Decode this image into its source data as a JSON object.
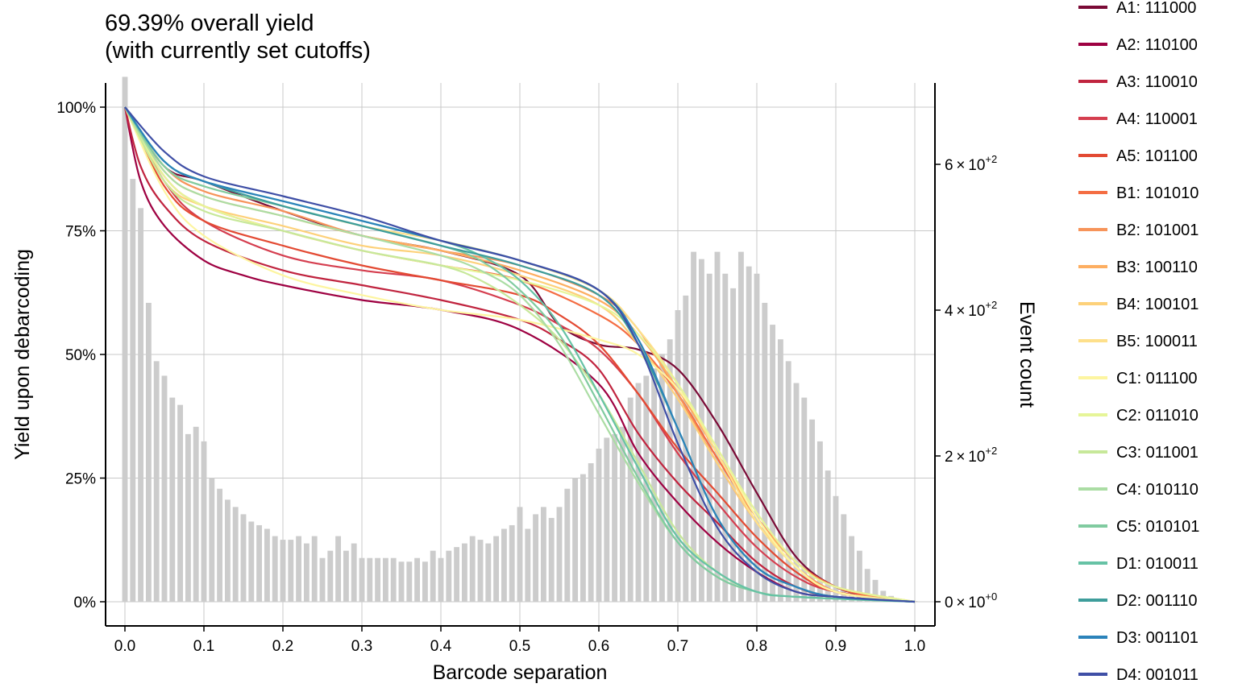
{
  "chart_data": {
    "type": "line",
    "title": "69.39% overall yield\n(with currently set cutoffs)",
    "xlabel": "Barcode separation",
    "ylabel": "Yield upon debarcoding",
    "y2label": "Event count",
    "xlim": [
      0,
      1
    ],
    "ylim": [
      0,
      100
    ],
    "y2lim": [
      0,
      750
    ],
    "grid": true,
    "legend": "right",
    "x_ticks": [
      "0.0",
      "0.1",
      "0.2",
      "0.3",
      "0.4",
      "0.5",
      "0.6",
      "0.7",
      "0.8",
      "0.9",
      "1.0"
    ],
    "y_ticks": [
      {
        "value": 0,
        "label": "0%"
      },
      {
        "value": 25,
        "label": "25%"
      },
      {
        "value": 50,
        "label": "50%"
      },
      {
        "value": 75,
        "label": "75%"
      },
      {
        "value": 100,
        "label": "100%"
      }
    ],
    "y2_ticks": [
      {
        "value": 0,
        "base": "0 × 10",
        "exp": "+0"
      },
      {
        "value": 200,
        "base": "2 × 10",
        "exp": "+2"
      },
      {
        "value": 400,
        "base": "4 × 10",
        "exp": "+2"
      },
      {
        "value": 600,
        "base": "6 × 10",
        "exp": "+2"
      }
    ],
    "histogram": {
      "color": "#cccccc",
      "bin_width": 0.01,
      "counts": [
        720,
        580,
        540,
        410,
        330,
        310,
        280,
        270,
        230,
        240,
        220,
        170,
        155,
        140,
        130,
        120,
        110,
        105,
        100,
        90,
        85,
        85,
        90,
        80,
        90,
        60,
        70,
        90,
        70,
        80,
        60,
        60,
        60,
        60,
        60,
        55,
        55,
        60,
        55,
        70,
        60,
        70,
        75,
        80,
        90,
        85,
        80,
        90,
        100,
        105,
        130,
        100,
        120,
        130,
        115,
        130,
        155,
        170,
        175,
        190,
        210,
        225,
        230,
        240,
        280,
        300,
        310,
        320,
        340,
        360,
        400,
        420,
        480,
        470,
        450,
        480,
        450,
        430,
        480,
        460,
        450,
        410,
        380,
        360,
        330,
        300,
        280,
        250,
        220,
        180,
        145,
        120,
        90,
        70,
        45,
        30,
        15,
        8,
        4,
        2,
        1
      ]
    },
    "series": [
      {
        "name": "A1: 111000",
        "color": "#7a0a36",
        "x": [
          0,
          0.05,
          0.1,
          0.2,
          0.3,
          0.4,
          0.5,
          0.55,
          0.6,
          0.65,
          0.7,
          0.75,
          0.8,
          0.85,
          0.9,
          0.95,
          1.0
        ],
        "y": [
          100,
          88,
          85,
          79,
          74,
          71,
          66,
          56,
          52,
          51,
          47,
          36,
          22,
          9,
          3,
          1,
          0
        ]
      },
      {
        "name": "A2: 110100",
        "color": "#9e0142",
        "x": [
          0,
          0.02,
          0.05,
          0.1,
          0.15,
          0.2,
          0.3,
          0.4,
          0.5,
          0.6,
          0.65,
          0.7,
          0.75,
          0.8,
          0.85,
          0.9,
          1.0
        ],
        "y": [
          100,
          85,
          76,
          69,
          66,
          64,
          61,
          59,
          55,
          44,
          30,
          20,
          12,
          6,
          2,
          1,
          0
        ]
      },
      {
        "name": "A3: 110010",
        "color": "#c0243f",
        "x": [
          0,
          0.02,
          0.05,
          0.1,
          0.2,
          0.3,
          0.4,
          0.5,
          0.55,
          0.6,
          0.65,
          0.7,
          0.75,
          0.8,
          0.85,
          0.9,
          1.0
        ],
        "y": [
          100,
          88,
          80,
          73,
          67,
          64,
          61,
          57,
          53,
          47,
          34,
          24,
          16,
          8,
          3,
          1,
          0
        ]
      },
      {
        "name": "A4: 110001",
        "color": "#d53e4f",
        "x": [
          0,
          0.05,
          0.1,
          0.2,
          0.3,
          0.4,
          0.5,
          0.55,
          0.6,
          0.65,
          0.7,
          0.75,
          0.8,
          0.85,
          0.9,
          1.0
        ],
        "y": [
          100,
          85,
          77,
          70,
          67,
          65,
          60,
          56,
          51,
          42,
          30,
          20,
          11,
          5,
          2,
          0
        ]
      },
      {
        "name": "A5: 101100",
        "color": "#e34a33",
        "x": [
          0,
          0.05,
          0.1,
          0.2,
          0.3,
          0.4,
          0.5,
          0.55,
          0.6,
          0.65,
          0.7,
          0.75,
          0.8,
          0.85,
          0.9,
          1.0
        ],
        "y": [
          100,
          84,
          77,
          72,
          68,
          65,
          62,
          58,
          52,
          42,
          31,
          22,
          13,
          6,
          2,
          0
        ]
      },
      {
        "name": "B1: 101010",
        "color": "#f46d43",
        "x": [
          0,
          0.05,
          0.1,
          0.2,
          0.3,
          0.4,
          0.5,
          0.6,
          0.65,
          0.7,
          0.75,
          0.8,
          0.85,
          0.9,
          0.95,
          1.0
        ],
        "y": [
          100,
          86,
          80,
          75,
          71,
          68,
          65,
          58,
          52,
          42,
          29,
          17,
          8,
          3,
          1,
          0
        ]
      },
      {
        "name": "B2: 101001",
        "color": "#f7945a",
        "x": [
          0,
          0.05,
          0.1,
          0.2,
          0.3,
          0.4,
          0.5,
          0.6,
          0.65,
          0.7,
          0.75,
          0.8,
          0.85,
          0.9,
          0.95,
          1.0
        ],
        "y": [
          100,
          88,
          83,
          79,
          74,
          71,
          68,
          62,
          55,
          42,
          28,
          16,
          7,
          2,
          1,
          0
        ]
      },
      {
        "name": "B3: 100110",
        "color": "#fdae61",
        "x": [
          0,
          0.05,
          0.1,
          0.2,
          0.3,
          0.4,
          0.5,
          0.6,
          0.65,
          0.7,
          0.75,
          0.8,
          0.85,
          0.9,
          1.0
        ],
        "y": [
          100,
          87,
          82,
          78,
          74,
          71,
          67,
          61,
          54,
          43,
          30,
          17,
          8,
          3,
          0
        ]
      },
      {
        "name": "B4: 100101",
        "color": "#fdd17a",
        "x": [
          0,
          0.05,
          0.1,
          0.2,
          0.3,
          0.4,
          0.5,
          0.6,
          0.65,
          0.7,
          0.75,
          0.8,
          0.85,
          0.9,
          1.0
        ],
        "y": [
          100,
          85,
          80,
          76,
          72,
          70,
          66,
          60,
          52,
          41,
          28,
          16,
          7,
          2,
          0
        ]
      },
      {
        "name": "B5: 100011",
        "color": "#fee08b",
        "x": [
          0,
          0.05,
          0.1,
          0.2,
          0.3,
          0.4,
          0.5,
          0.6,
          0.65,
          0.7,
          0.75,
          0.8,
          0.85,
          0.9,
          1.0
        ],
        "y": [
          100,
          88,
          84,
          80,
          76,
          73,
          69,
          63,
          55,
          44,
          30,
          16,
          7,
          2,
          0
        ]
      },
      {
        "name": "C1: 011100",
        "color": "#fdf5a0",
        "x": [
          0,
          0.05,
          0.1,
          0.2,
          0.3,
          0.4,
          0.5,
          0.6,
          0.65,
          0.7,
          0.75,
          0.8,
          0.85,
          0.9,
          1.0
        ],
        "y": [
          100,
          83,
          74,
          66,
          62,
          59,
          57,
          53,
          50,
          43,
          31,
          17,
          7,
          2,
          0
        ]
      },
      {
        "name": "C2: 011010",
        "color": "#e6f598",
        "x": [
          0,
          0.05,
          0.1,
          0.2,
          0.3,
          0.4,
          0.5,
          0.6,
          0.65,
          0.7,
          0.75,
          0.8,
          0.85,
          0.9,
          1.0
        ],
        "y": [
          100,
          86,
          80,
          75,
          71,
          68,
          65,
          60,
          54,
          44,
          31,
          18,
          8,
          3,
          0
        ]
      },
      {
        "name": "C3: 011001",
        "color": "#c7e89a",
        "x": [
          0,
          0.05,
          0.1,
          0.2,
          0.3,
          0.4,
          0.45,
          0.5,
          0.55,
          0.6,
          0.65,
          0.7,
          0.75,
          0.8,
          0.85,
          1.0
        ],
        "y": [
          100,
          85,
          79,
          75,
          71,
          68,
          65,
          60,
          53,
          42,
          28,
          14,
          6,
          2,
          1,
          0
        ]
      },
      {
        "name": "C4: 010110",
        "color": "#abdda4",
        "x": [
          0,
          0.05,
          0.1,
          0.2,
          0.3,
          0.4,
          0.45,
          0.5,
          0.55,
          0.6,
          0.65,
          0.7,
          0.75,
          0.8,
          0.85,
          1.0
        ],
        "y": [
          100,
          87,
          82,
          78,
          74,
          70,
          67,
          62,
          52,
          38,
          24,
          12,
          5,
          2,
          1,
          0
        ]
      },
      {
        "name": "C5: 010101",
        "color": "#80cba0",
        "x": [
          0,
          0.05,
          0.1,
          0.2,
          0.3,
          0.4,
          0.45,
          0.5,
          0.55,
          0.6,
          0.65,
          0.7,
          0.75,
          0.8,
          0.85,
          1.0
        ],
        "y": [
          100,
          88,
          84,
          80,
          76,
          72,
          69,
          63,
          54,
          40,
          25,
          12,
          5,
          2,
          1,
          0
        ]
      },
      {
        "name": "D1: 010011",
        "color": "#66c2a5",
        "x": [
          0,
          0.05,
          0.1,
          0.2,
          0.3,
          0.4,
          0.45,
          0.5,
          0.55,
          0.6,
          0.65,
          0.7,
          0.75,
          0.8,
          0.85,
          1.0
        ],
        "y": [
          100,
          89,
          85,
          81,
          77,
          73,
          70,
          65,
          56,
          42,
          27,
          13,
          6,
          2,
          1,
          0
        ]
      },
      {
        "name": "D2: 001110",
        "color": "#3e9d9b",
        "x": [
          0,
          0.05,
          0.1,
          0.2,
          0.3,
          0.4,
          0.5,
          0.6,
          0.65,
          0.7,
          0.75,
          0.8,
          0.85,
          0.9,
          1.0
        ],
        "y": [
          100,
          89,
          85,
          80,
          76,
          72,
          68,
          62,
          52,
          35,
          17,
          7,
          3,
          1,
          0
        ]
      },
      {
        "name": "D3: 001101",
        "color": "#2b83ba",
        "x": [
          0,
          0.05,
          0.1,
          0.2,
          0.3,
          0.4,
          0.5,
          0.6,
          0.65,
          0.7,
          0.75,
          0.8,
          0.85,
          0.9,
          1.0
        ],
        "y": [
          100,
          89,
          85,
          81,
          77,
          73,
          69,
          63,
          53,
          35,
          17,
          7,
          3,
          1,
          0
        ]
      },
      {
        "name": "D4: 001011",
        "color": "#3f4fa6",
        "x": [
          0,
          0.05,
          0.1,
          0.2,
          0.3,
          0.4,
          0.5,
          0.6,
          0.65,
          0.7,
          0.75,
          0.8,
          0.85,
          0.9,
          1.0
        ],
        "y": [
          100,
          91,
          86,
          82,
          78,
          73,
          69,
          63,
          52,
          32,
          15,
          6,
          2,
          1,
          0
        ]
      }
    ]
  }
}
